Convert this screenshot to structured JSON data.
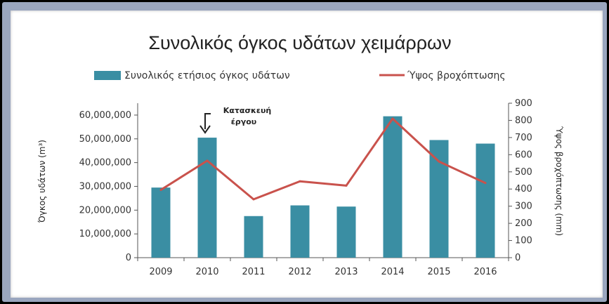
{
  "chart_data": {
    "type": "bar",
    "title": "Συνολικός όγκος υδάτων χειμάρρων",
    "categories": [
      "2009",
      "2010",
      "2011",
      "2012",
      "2013",
      "2014",
      "2015",
      "2016"
    ],
    "series": [
      {
        "name": "Συνολικός ετήσιος όγκος υδάτων",
        "type": "bar",
        "axis": "left",
        "values": [
          29500000,
          50500000,
          17500000,
          22000000,
          21500000,
          59500000,
          49500000,
          48000000
        ]
      },
      {
        "name": "Ύψος βροχόπτωσης",
        "type": "line",
        "axis": "right",
        "values": [
          395,
          565,
          340,
          445,
          420,
          810,
          560,
          435
        ]
      }
    ],
    "ylabel_left": "Όγκος υδάτων (m³)",
    "ylabel_right": "Ύψος βροχόπτωσης (mm)",
    "ylim_left": [
      0,
      65000000
    ],
    "ylim_right": [
      0,
      900
    ],
    "yticks_left": [
      "0",
      "10,000,000",
      "20,000,000",
      "30,000,000",
      "40,000,000",
      "50,000,000",
      "60,000,000"
    ],
    "yticks_right": [
      "0",
      "100",
      "200",
      "300",
      "400",
      "500",
      "600",
      "700",
      "800",
      "900"
    ],
    "legend_position": "top",
    "grid": false,
    "annotation": {
      "text_line1": "Κατασκευή",
      "text_line2": "έργου",
      "category": "2010"
    },
    "colors": {
      "bar": "#3a8ea3",
      "line": "#c9524c",
      "axis": "#555555"
    }
  }
}
